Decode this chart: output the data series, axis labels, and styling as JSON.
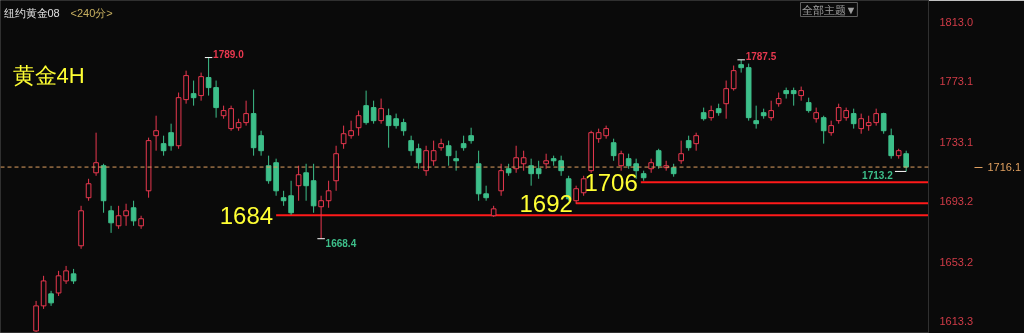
{
  "chart_data": {
    "type": "candlestick",
    "title": "纽约黄金08",
    "subtitle": "<240分>",
    "annotations": [
      "黄金4H",
      "全部主题▼",
      "1789.0",
      "1668.4",
      "1787.5",
      "1713.2"
    ],
    "categories": [
      null,
      null,
      null,
      null,
      null,
      null,
      null,
      null,
      null,
      null,
      null,
      null,
      null,
      null,
      null,
      null,
      null,
      null,
      null,
      null,
      null,
      null,
      null,
      null,
      null,
      null,
      null,
      null,
      null,
      null,
      null,
      null,
      null,
      null,
      null,
      null,
      null,
      null,
      null,
      null,
      null,
      null,
      null,
      null,
      null,
      null,
      null,
      null,
      null,
      null,
      null,
      null,
      null,
      null,
      null,
      null,
      null,
      null,
      null,
      null,
      null,
      null,
      null,
      null,
      null,
      null,
      null,
      null,
      null,
      null,
      null,
      null,
      null,
      null,
      null,
      null,
      null,
      null,
      null,
      null,
      null,
      null,
      null,
      null,
      null,
      null,
      null,
      null,
      null,
      null,
      null,
      null,
      null,
      null,
      null,
      null,
      null,
      null,
      null,
      null,
      null,
      null,
      null,
      null,
      null,
      null,
      null,
      null,
      null,
      null,
      null,
      null,
      null,
      null,
      null,
      null,
      null
    ],
    "ohlc": [
      [
        1607.0,
        1627.0,
        1606.3,
        1623.7
      ],
      [
        1623.7,
        1643.7,
        1621.7,
        1640.3
      ],
      [
        1631.7,
        1633.7,
        1623.7,
        1625.7
      ],
      [
        1632.3,
        1647.0,
        1630.3,
        1643.7
      ],
      [
        1640.3,
        1650.3,
        1638.3,
        1647.0
      ],
      [
        1645.0,
        1648.3,
        1638.3,
        1640.3
      ],
      [
        1663.7,
        1690.3,
        1661.7,
        1687.0
      ],
      [
        1695.7,
        1708.3,
        1693.7,
        1705.0
      ],
      [
        1712.3,
        1739.0,
        1710.3,
        1719.0
      ],
      [
        1717.0,
        1718.3,
        1685.7,
        1693.7
      ],
      [
        1687.0,
        1690.3,
        1672.3,
        1679.0
      ],
      [
        1677.0,
        1690.3,
        1675.0,
        1683.7
      ],
      [
        1683.7,
        1691.7,
        1677.0,
        1687.0
      ],
      [
        1689.0,
        1693.7,
        1677.0,
        1680.3
      ],
      [
        1677.0,
        1683.7,
        1675.0,
        1681.7
      ],
      [
        1700.3,
        1735.7,
        1695.7,
        1733.7
      ],
      [
        1737.0,
        1750.3,
        1727.0,
        1740.3
      ],
      [
        1731.7,
        1737.0,
        1723.7,
        1727.0
      ],
      [
        1739.0,
        1745.0,
        1727.0,
        1730.3
      ],
      [
        1730.3,
        1765.7,
        1728.3,
        1762.3
      ],
      [
        1761.0,
        1780.3,
        1758.3,
        1777.0
      ],
      [
        1765.0,
        1773.7,
        1757.0,
        1762.3
      ],
      [
        1763.7,
        1779.0,
        1760.3,
        1776.3
      ],
      [
        1775.7,
        1789.0,
        1763.7,
        1769.0
      ],
      [
        1769.0,
        1773.7,
        1749.0,
        1755.7
      ],
      [
        1750.3,
        1757.0,
        1748.3,
        1753.7
      ],
      [
        1741.7,
        1757.0,
        1740.3,
        1755.0
      ],
      [
        1742.3,
        1748.3,
        1740.3,
        1745.7
      ],
      [
        1745.7,
        1760.3,
        1743.7,
        1751.7
      ],
      [
        1751.7,
        1767.7,
        1723.7,
        1729.0
      ],
      [
        1737.0,
        1740.3,
        1723.7,
        1727.0
      ],
      [
        1717.0,
        1723.7,
        1705.0,
        1707.0
      ],
      [
        1719.0,
        1721.7,
        1697.0,
        1700.3
      ],
      [
        1695.7,
        1700.3,
        1690.3,
        1693.7
      ],
      [
        1697.0,
        1707.0,
        1684.3,
        1685.7
      ],
      [
        1703.7,
        1717.0,
        1693.7,
        1711.0
      ],
      [
        1712.3,
        1718.3,
        1693.7,
        1703.7
      ],
      [
        1707.0,
        1718.3,
        1685.7,
        1690.3
      ],
      [
        1689.7,
        1697.0,
        1668.4,
        1693.7
      ],
      [
        1693.7,
        1707.0,
        1689.0,
        1700.3
      ],
      [
        1707.0,
        1730.3,
        1700.3,
        1725.0
      ],
      [
        1731.7,
        1743.7,
        1728.3,
        1738.3
      ],
      [
        1737.0,
        1747.0,
        1735.0,
        1740.3
      ],
      [
        1742.3,
        1753.7,
        1737.0,
        1750.3
      ],
      [
        1757.0,
        1767.0,
        1744.3,
        1745.7
      ],
      [
        1755.7,
        1760.3,
        1745.0,
        1747.0
      ],
      [
        1747.0,
        1761.7,
        1745.0,
        1755.0
      ],
      [
        1750.3,
        1755.0,
        1729.0,
        1743.7
      ],
      [
        1748.3,
        1751.7,
        1741.7,
        1743.7
      ],
      [
        1745.7,
        1748.3,
        1737.0,
        1740.3
      ],
      [
        1733.7,
        1737.0,
        1723.7,
        1727.0
      ],
      [
        1728.3,
        1731.7,
        1715.0,
        1719.0
      ],
      [
        1713.7,
        1730.3,
        1710.3,
        1727.0
      ],
      [
        1720.3,
        1733.7,
        1717.0,
        1727.0
      ],
      [
        1729.0,
        1735.0,
        1727.0,
        1731.7
      ],
      [
        1730.3,
        1733.7,
        1717.0,
        1723.7
      ],
      [
        1721.7,
        1727.0,
        1713.7,
        1720.3
      ],
      [
        1731.7,
        1737.0,
        1727.0,
        1729.0
      ],
      [
        1737.0,
        1742.3,
        1731.7,
        1733.7
      ],
      [
        1718.3,
        1727.0,
        1693.7,
        1698.3
      ],
      [
        1698.3,
        1703.7,
        1693.7,
        1695.7
      ],
      [
        1683.7,
        1690.3,
        1683.0,
        1688.3
      ],
      [
        1700.3,
        1718.3,
        1697.0,
        1713.7
      ],
      [
        1715.0,
        1718.3,
        1710.3,
        1712.3
      ],
      [
        1715.0,
        1730.3,
        1712.3,
        1722.3
      ],
      [
        1718.3,
        1727.0,
        1713.7,
        1722.3
      ],
      [
        1717.0,
        1721.7,
        1703.7,
        1711.7
      ],
      [
        1715.0,
        1720.3,
        1708.3,
        1711.7
      ],
      [
        1718.3,
        1725.0,
        1715.0,
        1720.3
      ],
      [
        1721.7,
        1723.7,
        1717.0,
        1720.3
      ],
      [
        1720.3,
        1723.7,
        1710.3,
        1713.7
      ],
      [
        1708.3,
        1710.3,
        1693.7,
        1695.0
      ],
      [
        1693.7,
        1703.7,
        1691.7,
        1701.7
      ],
      [
        1699.0,
        1710.3,
        1697.0,
        1708.3
      ],
      [
        1713.7,
        1740.3,
        1712.3,
        1739.0
      ],
      [
        1735.0,
        1741.7,
        1732.3,
        1739.0
      ],
      [
        1737.0,
        1743.7,
        1735.0,
        1741.7
      ],
      [
        1732.3,
        1735.0,
        1720.3,
        1723.7
      ],
      [
        1717.0,
        1727.0,
        1713.7,
        1725.0
      ],
      [
        1721.7,
        1725.0,
        1715.0,
        1717.0
      ],
      [
        1718.3,
        1721.7,
        1708.3,
        1713.7
      ],
      [
        1711.7,
        1713.7,
        1707.0,
        1709.0
      ],
      [
        1715.0,
        1721.7,
        1712.3,
        1719.0
      ],
      [
        1727.0,
        1728.3,
        1715.0,
        1717.0
      ],
      [
        1715.7,
        1720.3,
        1713.7,
        1717.0
      ],
      [
        1715.7,
        1718.3,
        1709.7,
        1711.7
      ],
      [
        1720.3,
        1733.7,
        1718.3,
        1725.0
      ],
      [
        1733.7,
        1737.0,
        1727.0,
        1729.0
      ],
      [
        1731.7,
        1739.0,
        1727.0,
        1737.0
      ],
      [
        1752.3,
        1755.7,
        1747.0,
        1748.3
      ],
      [
        1749.0,
        1757.0,
        1747.0,
        1753.7
      ],
      [
        1755.0,
        1758.3,
        1750.3,
        1752.3
      ],
      [
        1758.3,
        1773.7,
        1748.3,
        1768.3
      ],
      [
        1768.3,
        1783.7,
        1767.0,
        1780.3
      ],
      [
        1784.3,
        1787.5,
        1779.0,
        1782.3
      ],
      [
        1782.3,
        1785.0,
        1747.0,
        1749.0
      ],
      [
        1747.0,
        1757.0,
        1741.7,
        1745.0
      ],
      [
        1752.3,
        1755.0,
        1748.3,
        1750.3
      ],
      [
        1749.0,
        1760.3,
        1747.0,
        1753.7
      ],
      [
        1758.3,
        1765.7,
        1756.3,
        1761.7
      ],
      [
        1767.0,
        1769.0,
        1761.7,
        1765.0
      ],
      [
        1767.0,
        1769.0,
        1757.0,
        1765.0
      ],
      [
        1763.7,
        1769.7,
        1760.3,
        1767.0
      ],
      [
        1759.0,
        1762.3,
        1752.3,
        1753.7
      ],
      [
        1748.3,
        1755.7,
        1745.7,
        1752.3
      ],
      [
        1749.0,
        1750.3,
        1731.7,
        1740.3
      ],
      [
        1739.0,
        1747.0,
        1737.0,
        1743.7
      ],
      [
        1747.0,
        1758.3,
        1745.0,
        1755.7
      ],
      [
        1749.0,
        1755.7,
        1747.0,
        1753.7
      ],
      [
        1751.7,
        1755.0,
        1741.7,
        1745.0
      ],
      [
        1741.7,
        1751.7,
        1738.3,
        1748.3
      ],
      [
        1743.7,
        1750.3,
        1740.3,
        1745.7
      ],
      [
        1745.7,
        1755.0,
        1743.7,
        1751.7
      ],
      [
        1751.7,
        1752.3,
        1738.3,
        1740.3
      ],
      [
        1737.0,
        1741.7,
        1721.7,
        1723.7
      ],
      [
        1723.7,
        1728.3,
        1721.7,
        1727.0
      ],
      [
        1725.0,
        1727.0,
        1713.2,
        1716.1
      ]
    ],
    "colors": [
      "#e8384f",
      "#e8384f",
      "#3dbf8a",
      "#e8384f",
      "#e8384f",
      "#3dbf8a",
      "#e8384f",
      "#e8384f",
      "#e8384f",
      "#3dbf8a",
      "#3dbf8a",
      "#e8384f",
      "#e8384f",
      "#3dbf8a",
      "#e8384f",
      "#e8384f",
      "#e8384f",
      "#3dbf8a",
      "#3dbf8a",
      "#e8384f",
      "#e8384f",
      "#3dbf8a",
      "#e8384f",
      "#3dbf8a",
      "#3dbf8a",
      "#e8384f",
      "#e8384f",
      "#e8384f",
      "#e8384f",
      "#3dbf8a",
      "#3dbf8a",
      "#3dbf8a",
      "#3dbf8a",
      "#3dbf8a",
      "#3dbf8a",
      "#e8384f",
      "#3dbf8a",
      "#3dbf8a",
      "#e8384f",
      "#e8384f",
      "#e8384f",
      "#e8384f",
      "#e8384f",
      "#e8384f",
      "#3dbf8a",
      "#3dbf8a",
      "#e8384f",
      "#3dbf8a",
      "#3dbf8a",
      "#3dbf8a",
      "#3dbf8a",
      "#3dbf8a",
      "#e8384f",
      "#e8384f",
      "#e8384f",
      "#3dbf8a",
      "#3dbf8a",
      "#3dbf8a",
      "#3dbf8a",
      "#3dbf8a",
      "#3dbf8a",
      "#e8384f",
      "#e8384f",
      "#3dbf8a",
      "#e8384f",
      "#e8384f",
      "#3dbf8a",
      "#3dbf8a",
      "#e8384f",
      "#3dbf8a",
      "#3dbf8a",
      "#3dbf8a",
      "#e8384f",
      "#e8384f",
      "#e8384f",
      "#e8384f",
      "#e8384f",
      "#3dbf8a",
      "#e8384f",
      "#3dbf8a",
      "#3dbf8a",
      "#3dbf8a",
      "#e8384f",
      "#3dbf8a",
      "#e8384f",
      "#3dbf8a",
      "#e8384f",
      "#3dbf8a",
      "#e8384f",
      "#3dbf8a",
      "#e8384f",
      "#3dbf8a",
      "#e8384f",
      "#e8384f",
      "#3dbf8a",
      "#3dbf8a",
      "#3dbf8a",
      "#3dbf8a",
      "#e8384f",
      "#e8384f",
      "#3dbf8a",
      "#3dbf8a",
      "#e8384f",
      "#3dbf8a",
      "#e8384f",
      "#3dbf8a",
      "#e8384f",
      "#e8384f",
      "#e8384f",
      "#3dbf8a",
      "#e8384f",
      "#e8384f",
      "#e8384f",
      "#3dbf8a",
      "#3dbf8a",
      "#e8384f",
      "#3dbf8a"
    ],
    "ylim": [
      1605.3,
      1827.0
    ],
    "yticks": [
      1613.3,
      1653.2,
      1693.2,
      1733.1,
      1773.1,
      {
        "value": 1813.0,
        "label": "1813.0"
      }
    ],
    "ref_lines": [
      {
        "axis": "y",
        "value": 1716.1,
        "label": "1716.1",
        "color": "#e0a060",
        "line_style": "dashed"
      },
      {
        "axis": "y",
        "value": 1706,
        "label": "1706",
        "color": "#ff1a1a"
      },
      {
        "axis": "y",
        "value": 1692,
        "label": "1692",
        "color": "#ff1a1a"
      },
      {
        "axis": "y",
        "value": 1684,
        "label": "1684",
        "color": "#ff1a1a"
      }
    ],
    "tick_labels": "y",
    "grid": false
  }
}
